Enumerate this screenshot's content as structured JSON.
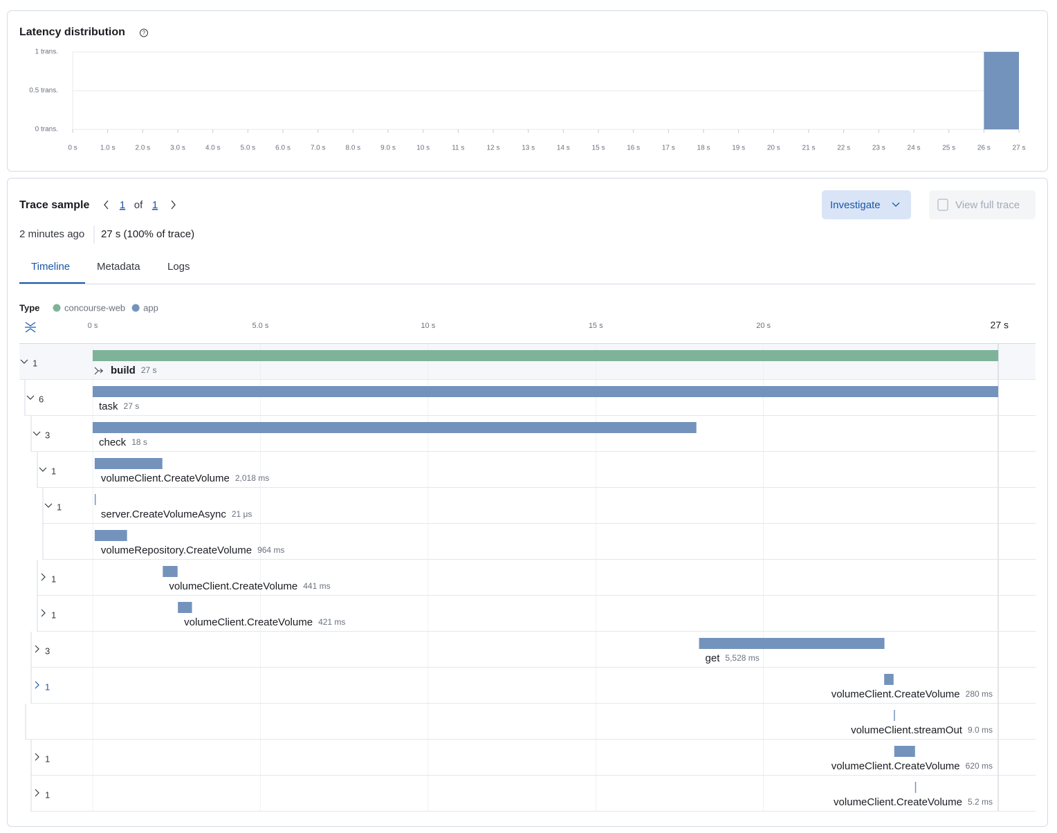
{
  "chart_data": {
    "type": "histogram",
    "title": "Latency distribution",
    "xlim": [
      0,
      27
    ],
    "xticks": [
      {
        "value": 0,
        "label": "0 s"
      },
      {
        "value": 1,
        "label": "1.0 s"
      },
      {
        "value": 2,
        "label": "2.0 s"
      },
      {
        "value": 3,
        "label": "3.0 s"
      },
      {
        "value": 4,
        "label": "4.0 s"
      },
      {
        "value": 5,
        "label": "5.0 s"
      },
      {
        "value": 6,
        "label": "6.0 s"
      },
      {
        "value": 7,
        "label": "7.0 s"
      },
      {
        "value": 8,
        "label": "8.0 s"
      },
      {
        "value": 9,
        "label": "9.0 s"
      },
      {
        "value": 10,
        "label": "10 s"
      },
      {
        "value": 11,
        "label": "11 s"
      },
      {
        "value": 12,
        "label": "12 s"
      },
      {
        "value": 13,
        "label": "13 s"
      },
      {
        "value": 14,
        "label": "14 s"
      },
      {
        "value": 15,
        "label": "15 s"
      },
      {
        "value": 16,
        "label": "16 s"
      },
      {
        "value": 17,
        "label": "17 s"
      },
      {
        "value": 18,
        "label": "18 s"
      },
      {
        "value": 19,
        "label": "19 s"
      },
      {
        "value": 20,
        "label": "20 s"
      },
      {
        "value": 21,
        "label": "21 s"
      },
      {
        "value": 22,
        "label": "22 s"
      },
      {
        "value": 23,
        "label": "23 s"
      },
      {
        "value": 24,
        "label": "24 s"
      },
      {
        "value": 25,
        "label": "25 s"
      },
      {
        "value": 26,
        "label": "26 s"
      },
      {
        "value": 27,
        "label": "27 s"
      }
    ],
    "ylim": [
      0,
      1
    ],
    "yticks": [
      {
        "value": 0,
        "label": "0 trans."
      },
      {
        "value": 0.5,
        "label": "0.5 trans."
      },
      {
        "value": 1,
        "label": "1 trans."
      }
    ],
    "bins": [
      26,
      27
    ],
    "values": [
      1
    ],
    "color": "#7393bc",
    "grid": true
  },
  "trace": {
    "title": "Trace sample",
    "page": "1",
    "of": "of",
    "total": "1",
    "investigate": "Investigate",
    "view_full_trace": "View full trace",
    "time_ago": "2 minutes ago",
    "duration": "27 s (100% of trace)",
    "tabs": [
      "Timeline",
      "Metadata",
      "Logs"
    ],
    "legend": {
      "label": "Type",
      "items": [
        {
          "name": "concourse-web",
          "color": "#7eb39a"
        },
        {
          "name": "app",
          "color": "#7393bc"
        }
      ]
    },
    "timeline": {
      "xlim": [
        0,
        27000
      ],
      "xticks": [
        {
          "value": 0,
          "label": "0 s"
        },
        {
          "value": 5000,
          "label": "5.0 s"
        },
        {
          "value": 10000,
          "label": "10 s"
        },
        {
          "value": 15000,
          "label": "15 s"
        },
        {
          "value": 20000,
          "label": "20 s"
        },
        {
          "value": 27000,
          "label": "27 s"
        }
      ],
      "spans": [
        {
          "count": "1",
          "name": "build",
          "type": "concourse-web",
          "start": 0,
          "duration": {
            "value": 27000,
            "label": "27 s"
          }
        },
        {
          "count": "6",
          "name": "task",
          "type": "app",
          "start": 0,
          "duration": {
            "value": 27000,
            "label": "27 s"
          }
        },
        {
          "count": "3",
          "name": "check",
          "type": "app",
          "start": 0,
          "duration": {
            "value": 18000,
            "label": "18 s"
          }
        },
        {
          "count": "1",
          "name": "volumeClient.CreateVolume",
          "type": "app",
          "start": 60,
          "duration": {
            "value": 2018,
            "label": "2,018 ms"
          }
        },
        {
          "count": "1",
          "name": "server.CreateVolumeAsync",
          "type": "app",
          "start": 60,
          "duration": {
            "value": 0.021,
            "label": "21 μs"
          }
        },
        {
          "name": "volumeRepository.CreateVolume",
          "type": "app",
          "start": 60,
          "duration": {
            "value": 964,
            "label": "964 ms"
          }
        },
        {
          "count": "1",
          "name": "volumeClient.CreateVolume",
          "type": "app",
          "start": 2090,
          "duration": {
            "value": 441,
            "label": "441 ms"
          }
        },
        {
          "count": "1",
          "name": "volumeClient.CreateVolume",
          "type": "app",
          "start": 2540,
          "duration": {
            "value": 421,
            "label": "421 ms"
          }
        },
        {
          "count": "3",
          "name": "get",
          "type": "app",
          "start": 18080,
          "duration": {
            "value": 5528,
            "label": "5,528 ms"
          }
        },
        {
          "count": "1",
          "name": "volumeClient.CreateVolume",
          "type": "app",
          "start": 23600,
          "duration": {
            "value": 280,
            "label": "280 ms"
          }
        },
        {
          "name": "volumeClient.streamOut",
          "type": "app",
          "start": 23890,
          "duration": {
            "value": 9.0,
            "label": "9.0 ms"
          }
        },
        {
          "count": "1",
          "name": "volumeClient.CreateVolume",
          "type": "app",
          "start": 23900,
          "duration": {
            "value": 620,
            "label": "620 ms"
          }
        },
        {
          "count": "1",
          "name": "volumeClient.CreateVolume",
          "type": "app",
          "start": 24520,
          "duration": {
            "value": 5.2,
            "label": "5.2 ms"
          }
        }
      ]
    }
  }
}
